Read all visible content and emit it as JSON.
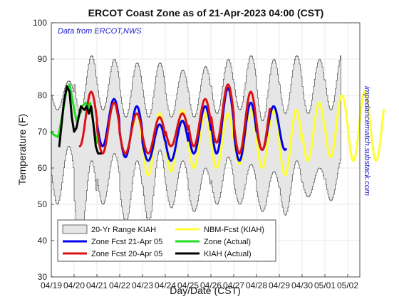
{
  "chart_data": {
    "type": "line",
    "title": "ERCOT Coast Zone as of 21-Apr-2023 04:00 (CST)",
    "xlabel": "Day/Date (CST)",
    "ylabel": "Temperature (F)",
    "annotation_left": "Data from ERCOT,NWS",
    "annotation_right": "impedancematch.substack.com",
    "grid": true,
    "legend_position": "bottom-left",
    "xlim": [
      0,
      13
    ],
    "ylim": [
      30,
      100
    ],
    "yticks": [
      30,
      40,
      50,
      60,
      70,
      80,
      90,
      100
    ],
    "xtick_labels": [
      "04/19",
      "04/20",
      "04/21",
      "04/22",
      "04/23",
      "04/24",
      "04/25",
      "04/26",
      "04/27",
      "04/28",
      "04/29",
      "04/30",
      "05/01",
      "05/02"
    ],
    "band": {
      "name": "20-Yr Range KIAH",
      "color": "#e6e6e6",
      "days": [
        0,
        1,
        2,
        3,
        4,
        5,
        6,
        7,
        8,
        9,
        10,
        11,
        12,
        13
      ],
      "upper_max": [
        84,
        91,
        90,
        89,
        89,
        87,
        88,
        90,
        91,
        90,
        91,
        90,
        92,
        93
      ],
      "upper_min": [
        76,
        75,
        76,
        74,
        74,
        74,
        74,
        75,
        76,
        73,
        75,
        75,
        76,
        76
      ],
      "lower_max": [
        66,
        62,
        64,
        62,
        65,
        62,
        60,
        63,
        61,
        59,
        62,
        60,
        63,
        62
      ],
      "lower_min": [
        50,
        40,
        50,
        45,
        45,
        49,
        48,
        50,
        50,
        48,
        47,
        52,
        51,
        48
      ]
    },
    "series": [
      {
        "name": "NBM-Fcst (KIAH)",
        "color": "#ffff33",
        "start": 3.6,
        "highs": [
          75,
          75,
          76,
          75,
          75,
          76,
          76,
          76,
          78,
          80,
          81
        ],
        "lows": [
          59,
          58,
          59,
          60,
          60,
          61,
          60,
          58,
          62,
          63,
          62
        ]
      },
      {
        "name": "Zone Fcst 21-Apr 05",
        "color": "#0000ee",
        "start": 2.0,
        "end": 10.3,
        "highs": [
          79,
          77,
          72,
          73,
          77,
          82,
          78,
          77,
          77
        ],
        "lows": [
          66,
          63,
          62,
          62,
          64,
          64,
          62,
          65,
          65
        ]
      },
      {
        "name": "Zone Fcst 20-Apr 05",
        "color": "#dd1111",
        "start": 1.25,
        "end": 9.6,
        "highs": [
          81,
          78,
          75,
          74,
          75,
          79,
          83,
          81,
          80,
          80
        ],
        "lows": [
          66,
          64,
          64,
          64,
          66,
          66,
          67,
          64,
          65
        ]
      },
      {
        "name": "Zone (Actual)",
        "color": "#22dd22",
        "start": 0.0,
        "end": 2.0,
        "points": [
          [
            0.0,
            69.8
          ],
          [
            0.15,
            69.0
          ],
          [
            0.3,
            68.5
          ],
          [
            0.5,
            75
          ],
          [
            0.65,
            81
          ],
          [
            0.8,
            83
          ],
          [
            0.95,
            78
          ],
          [
            1.1,
            73
          ],
          [
            1.25,
            75
          ],
          [
            1.35,
            77
          ],
          [
            1.5,
            78
          ],
          [
            1.6,
            76
          ],
          [
            1.7,
            78
          ],
          [
            1.8,
            74
          ],
          [
            1.9,
            70
          ],
          [
            2.0,
            67
          ]
        ]
      },
      {
        "name": "KIAH (Actual)",
        "color": "#000000",
        "start": 0.35,
        "end": 2.17,
        "points": [
          [
            0.35,
            66
          ],
          [
            0.45,
            72
          ],
          [
            0.55,
            78
          ],
          [
            0.68,
            82.5
          ],
          [
            0.8,
            81
          ],
          [
            0.9,
            74
          ],
          [
            1.0,
            70
          ],
          [
            1.1,
            71
          ],
          [
            1.2,
            74
          ],
          [
            1.3,
            77
          ],
          [
            1.45,
            76
          ],
          [
            1.55,
            77
          ],
          [
            1.65,
            75
          ],
          [
            1.75,
            77
          ],
          [
            1.85,
            72
          ],
          [
            1.95,
            66
          ],
          [
            2.05,
            64
          ],
          [
            2.17,
            64
          ]
        ]
      }
    ],
    "legend": [
      {
        "label": "20-Yr Range KIAH",
        "swatch": "box",
        "color": "#e6e6e6"
      },
      {
        "label": "NBM-Fcst (KIAH)",
        "swatch": "line",
        "color": "#ffff33"
      },
      {
        "label": "Zone Fcst 21-Apr 05",
        "swatch": "line",
        "color": "#0000ee"
      },
      {
        "label": "Zone (Actual)",
        "swatch": "line",
        "color": "#22dd22"
      },
      {
        "label": "Zone Fcst 20-Apr 05",
        "swatch": "line",
        "color": "#dd1111"
      },
      {
        "label": "KIAH (Actual)",
        "swatch": "line",
        "color": "#000000"
      }
    ]
  }
}
